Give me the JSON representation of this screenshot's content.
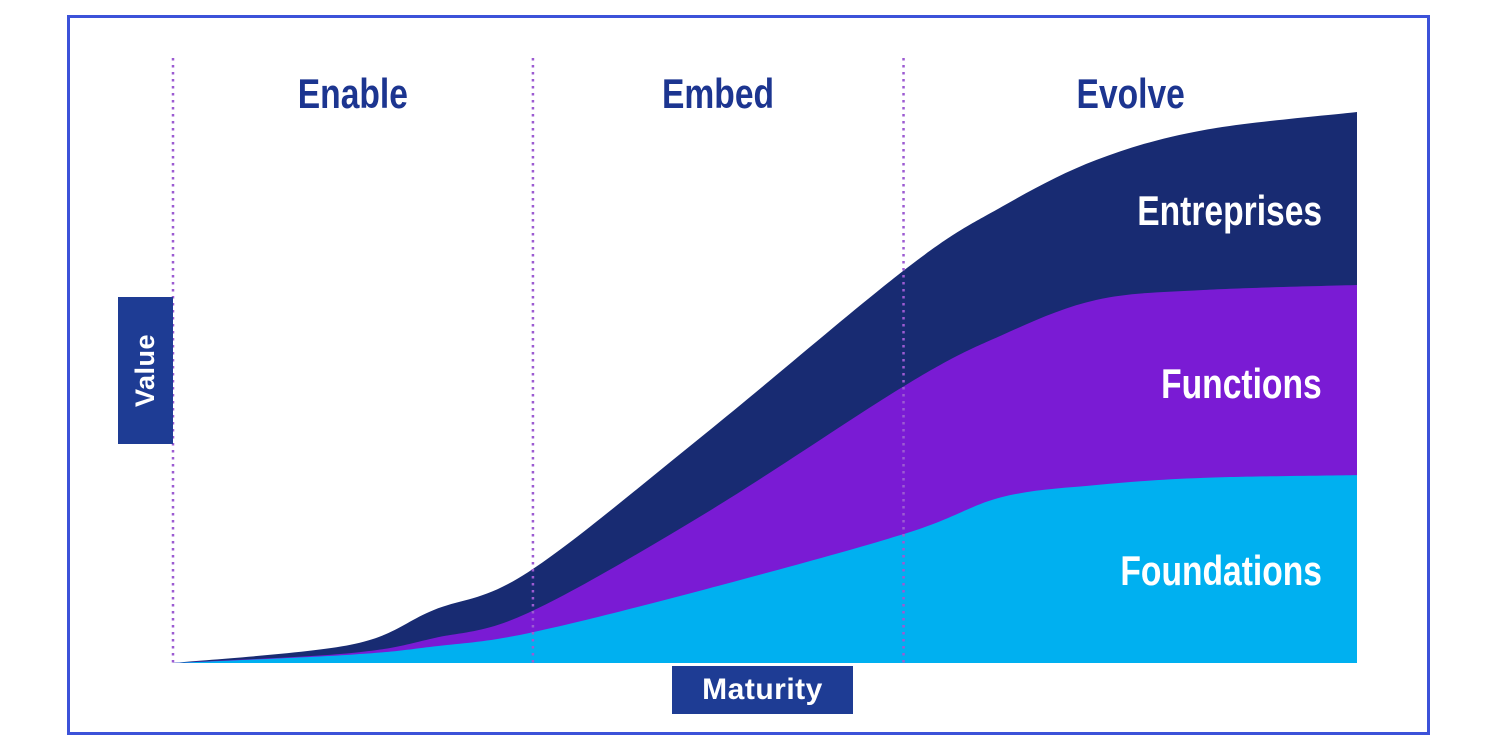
{
  "colors": {
    "background": "#FFFFFF",
    "border": "#3C52D9",
    "heading_text": "#1C3590",
    "axis_box_bg": "#1E3C94",
    "axis_box_text": "#FFFFFF",
    "area_label_text": "#FFFFFF",
    "phase_divider": "#9C5BD2"
  },
  "axis": {
    "y_label": "Value",
    "x_label": "Maturity"
  },
  "chart_data": {
    "type": "area",
    "stacked": true,
    "title": "",
    "xlabel": "Maturity",
    "ylabel": "Value",
    "grid": false,
    "x_ticks_visible": false,
    "y_ticks_visible": false,
    "legend_position": "labels inside areas at right",
    "ylim": [
      0,
      100
    ],
    "phases": [
      {
        "label": "Enable",
        "x_range": [
          0,
          0.304
        ]
      },
      {
        "label": "Embed",
        "x_range": [
          0.304,
          0.617
        ]
      },
      {
        "label": "Evolve",
        "x_range": [
          0.617,
          1.0
        ]
      }
    ],
    "x": [
      0,
      0.15,
      0.22,
      0.3,
      0.45,
      0.62,
      0.7,
      0.78,
      0.87,
      1.0
    ],
    "series": [
      {
        "name": "Foundations",
        "color": "#00B0F0",
        "values": [
          0,
          1.5,
          3.0,
          5.4,
          13.4,
          23.6,
          30.1,
          32.3,
          33.6,
          34.1
        ]
      },
      {
        "name": "Functions",
        "color": "#7A1BD4",
        "values": [
          0,
          0.3,
          1.5,
          3.7,
          13.8,
          27.0,
          29.4,
          33.6,
          34.1,
          34.5
        ]
      },
      {
        "name": "Entreprises",
        "color": "#182B72",
        "values": [
          0,
          1.5,
          5.1,
          7.4,
          14.5,
          21.1,
          23.3,
          25.4,
          29.0,
          31.4
        ]
      }
    ]
  }
}
